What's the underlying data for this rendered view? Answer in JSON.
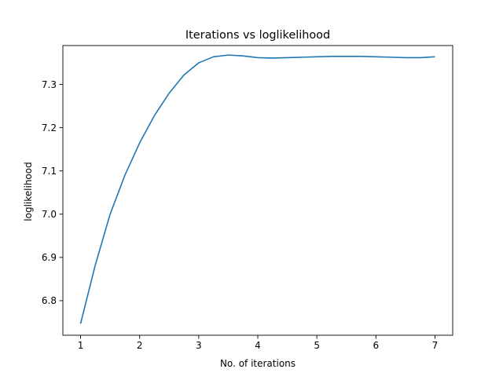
{
  "chart_data": {
    "type": "line",
    "title": "Iterations vs loglikelihood",
    "xlabel": "No. of iterations",
    "ylabel": "loglikelihood",
    "xlim": [
      0.7,
      7.3
    ],
    "ylim": [
      6.72,
      7.39
    ],
    "x_ticks": [
      1,
      2,
      3,
      4,
      5,
      6,
      7
    ],
    "y_ticks": [
      6.8,
      6.9,
      7.0,
      7.1,
      7.2,
      7.3
    ],
    "y_tick_labels": [
      "6.8",
      "6.9",
      "7.0",
      "7.1",
      "7.2",
      "7.3"
    ],
    "grid": false,
    "legend": "none",
    "series": [
      {
        "color": "#1f77b4",
        "x": [
          1,
          1.25,
          1.5,
          1.75,
          2,
          2.25,
          2.5,
          2.75,
          3,
          3.25,
          3.5,
          3.75,
          4,
          4.25,
          4.5,
          4.75,
          5,
          5.25,
          5.5,
          5.75,
          6,
          6.25,
          6.5,
          6.75,
          7
        ],
        "y": [
          6.747,
          6.883,
          7.0,
          7.09,
          7.165,
          7.228,
          7.28,
          7.322,
          7.35,
          7.364,
          7.368,
          7.366,
          7.362,
          7.361,
          7.362,
          7.363,
          7.364,
          7.365,
          7.365,
          7.365,
          7.364,
          7.363,
          7.362,
          7.362,
          7.364
        ]
      }
    ]
  }
}
